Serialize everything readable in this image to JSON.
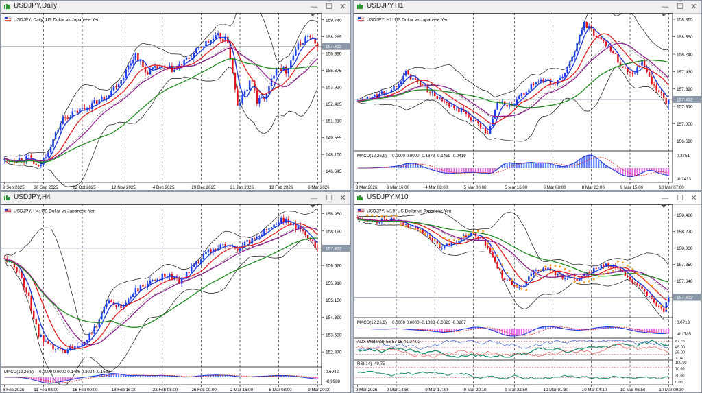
{
  "colors": {
    "bull": "#1c3ee8",
    "bear": "#e0141e",
    "ma_blue": "#1f3bd6",
    "ma_red": "#e01a1a",
    "ma_purple": "#8e1f8e",
    "ma_green": "#1e8a1e",
    "band": "#111111",
    "psar": "#f0a020",
    "macd_hist": "#5a7dff",
    "macd_hist_neg": "#e070e0",
    "macd_signal": "#e02020",
    "price_line": "#8a97a8",
    "price_tag": "#8a97a8"
  },
  "icons": {
    "title": "chart-window-icon",
    "minimize": "minimize-icon",
    "maximize": "maximize-icon",
    "close": "close-icon"
  },
  "windows": [
    {
      "id": "daily",
      "title": "USDJPY,Daily",
      "symbol_label": "USDJPY, Daily:  US Dollar vs Japanese Yen",
      "active": false,
      "price_scale": [
        "159.740",
        "158.285",
        "156.830",
        "155.375",
        "153.920",
        "152.465",
        "151.010",
        "149.555",
        "148.100",
        "146.645"
      ],
      "price_range": [
        145.8,
        160.2
      ],
      "current_price": "157.432",
      "current_value": 157.432,
      "time_labels": [
        "8 Sep 2025",
        "30 Sep 2025",
        "22 Oct 2025",
        "12 Nov 2025",
        "4 Dec 2025",
        "29 Dec 2025",
        "21 Jan 2026",
        "12 Feb 2026",
        "6 Mar 2026"
      ],
      "bars": 130,
      "path": [
        [
          0,
          147.6
        ],
        [
          10,
          147.8
        ],
        [
          14,
          146.9
        ],
        [
          18,
          148.5
        ],
        [
          24,
          151.2
        ],
        [
          30,
          151.8
        ],
        [
          36,
          152.4
        ],
        [
          42,
          153.2
        ],
        [
          48,
          154.6
        ],
        [
          54,
          156.8
        ],
        [
          58,
          155.2
        ],
        [
          64,
          155.6
        ],
        [
          70,
          155.4
        ],
        [
          76,
          156.4
        ],
        [
          82,
          157.6
        ],
        [
          88,
          158.3
        ],
        [
          92,
          157.9
        ],
        [
          96,
          152.2
        ],
        [
          98,
          153.1
        ],
        [
          102,
          154.6
        ],
        [
          104,
          152.6
        ],
        [
          108,
          153.2
        ],
        [
          112,
          155.8
        ],
        [
          116,
          155.3
        ],
        [
          120,
          157.2
        ],
        [
          125,
          158.4
        ],
        [
          129,
          157.4
        ]
      ],
      "macd_label": "",
      "macd_values": ""
    },
    {
      "id": "h1",
      "title": "USDJPY,H1",
      "symbol_label": "USDJPY, H1:  US Dollar vs Japanese Yen",
      "active": false,
      "price_scale": [
        "158.865",
        "158.550",
        "158.240",
        "157.930",
        "157.620",
        "157.310",
        "157.000",
        "156.690"
      ],
      "price_range": [
        156.55,
        158.95
      ],
      "current_price": "157.432",
      "current_value": 157.432,
      "time_labels": [
        "3 Mar 2026",
        "3 Mar 16:00",
        "4 Mar 08:00",
        "5 Mar 00:00",
        "5 Mar 16:00",
        "6 Mar 08:00",
        "8 Mar 23:00",
        "9 Mar 15:00",
        "10 Mar 07:00"
      ],
      "bars": 130,
      "path": [
        [
          0,
          157.4
        ],
        [
          8,
          157.5
        ],
        [
          14,
          157.6
        ],
        [
          20,
          157.9
        ],
        [
          26,
          157.7
        ],
        [
          32,
          157.5
        ],
        [
          38,
          157.3
        ],
        [
          44,
          157.2
        ],
        [
          50,
          157.0
        ],
        [
          54,
          156.8
        ],
        [
          58,
          157.4
        ],
        [
          64,
          157.3
        ],
        [
          70,
          157.6
        ],
        [
          76,
          157.8
        ],
        [
          82,
          157.7
        ],
        [
          86,
          157.9
        ],
        [
          90,
          158.3
        ],
        [
          94,
          158.8
        ],
        [
          98,
          158.6
        ],
        [
          104,
          158.4
        ],
        [
          110,
          158.0
        ],
        [
          114,
          157.9
        ],
        [
          118,
          158.1
        ],
        [
          122,
          157.7
        ],
        [
          126,
          157.5
        ],
        [
          129,
          157.3
        ]
      ],
      "macd_label": "MACD(12,26,9)",
      "macd_values": "0.0000 0.0000 -0.1878 -0.1459 -0.0419",
      "macd_scale": [
        "0.3751",
        "-0.2413"
      ]
    },
    {
      "id": "h4",
      "title": "USDJPY,H4",
      "symbol_label": "USDJPY, H4:  US Dollar vs Japanese Yen",
      "active": false,
      "price_scale": [
        "158.950",
        "158.190",
        "157.430",
        "156.670",
        "155.910",
        "155.150",
        "154.390",
        "153.630",
        "152.870"
      ],
      "price_range": [
        152.3,
        159.3
      ],
      "current_price": "157.432",
      "current_value": 157.432,
      "time_labels": [
        "6 Feb 2026",
        "11 Feb 08:00",
        "16 Feb 00:00",
        "18 Feb 16:00",
        "23 Feb 08:00",
        "26 Feb 00:00",
        "2 Mar 16:00",
        "5 Mar 08:00",
        "9 Mar 20:00"
      ],
      "bars": 130,
      "path": [
        [
          0,
          157.0
        ],
        [
          6,
          156.4
        ],
        [
          10,
          155.2
        ],
        [
          14,
          153.6
        ],
        [
          18,
          153.1
        ],
        [
          24,
          152.9
        ],
        [
          30,
          153.2
        ],
        [
          36,
          153.6
        ],
        [
          42,
          155.1
        ],
        [
          48,
          154.8
        ],
        [
          54,
          155.6
        ],
        [
          60,
          155.9
        ],
        [
          66,
          156.3
        ],
        [
          72,
          156.0
        ],
        [
          78,
          156.6
        ],
        [
          84,
          157.3
        ],
        [
          90,
          157.6
        ],
        [
          96,
          157.4
        ],
        [
          102,
          157.8
        ],
        [
          108,
          158.3
        ],
        [
          114,
          158.7
        ],
        [
          120,
          158.4
        ],
        [
          125,
          158.0
        ],
        [
          129,
          157.4
        ]
      ],
      "macd_label": "MACD(12,26,9)",
      "macd_values": "0.0000 0.0000 0.1496 0.3024 -0.1528",
      "macd_scale": [
        "0.6942",
        "-0.9988"
      ]
    },
    {
      "id": "m10",
      "title": "USDJPY,M10",
      "symbol_label": "USDJPY, M10:  US Dollar vs Japanese Yen",
      "active": true,
      "price_scale": [
        "158.480",
        "158.270",
        "158.060",
        "157.850",
        "157.640"
      ],
      "price_range": [
        157.2,
        158.6
      ],
      "current_price": "157.432",
      "current_value": 157.432,
      "time_labels": [
        "9 Mar 2026",
        "9 Mar 14:50",
        "9 Mar 17:30",
        "9 Mar 20:10",
        "9 Mar 22:50",
        "10 Mar 01:30",
        "10 Mar 04:10",
        "10 Mar 06:50",
        "10 Mar 09:30"
      ],
      "bars": 130,
      "path": [
        [
          0,
          158.45
        ],
        [
          8,
          158.4
        ],
        [
          14,
          158.42
        ],
        [
          20,
          158.35
        ],
        [
          26,
          158.3
        ],
        [
          30,
          158.2
        ],
        [
          34,
          158.05
        ],
        [
          38,
          158.1
        ],
        [
          44,
          158.2
        ],
        [
          48,
          158.25
        ],
        [
          52,
          158.15
        ],
        [
          56,
          157.95
        ],
        [
          60,
          157.7
        ],
        [
          64,
          157.6
        ],
        [
          68,
          157.55
        ],
        [
          72,
          157.75
        ],
        [
          78,
          157.8
        ],
        [
          84,
          157.7
        ],
        [
          90,
          157.65
        ],
        [
          96,
          157.75
        ],
        [
          102,
          157.85
        ],
        [
          108,
          157.8
        ],
        [
          112,
          157.7
        ],
        [
          116,
          157.6
        ],
        [
          120,
          157.45
        ],
        [
          124,
          157.35
        ],
        [
          127,
          157.25
        ],
        [
          129,
          157.43
        ]
      ],
      "macd_label": "MACD(12,26,9)",
      "macd_values": "0.0000 0.0000 -0.1033 -0.0826 -0.0207",
      "macd_scale": [
        "0.0713",
        "-0.1785"
      ],
      "adx_label": "ADX Wilder(8)",
      "adx_values": "56.57 15.41 27.02",
      "adx_scale": [
        "67.65",
        "45.00",
        "25.00",
        "7.04"
      ],
      "rsi_label": "RSI(14)",
      "rsi_values": "40.75",
      "rsi_scale": [
        "100.00",
        "70.00",
        "30.00",
        "0.00"
      ]
    }
  ]
}
